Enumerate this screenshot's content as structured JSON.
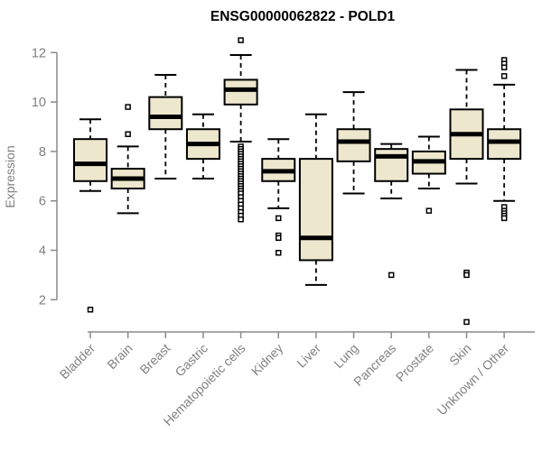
{
  "chart_data": {
    "type": "boxplot",
    "title": "ENSG00000062822 - POLD1",
    "xlabel": "",
    "ylabel": "Expression",
    "yticks": [
      2,
      4,
      6,
      8,
      10,
      12
    ],
    "ylim": [
      1.0,
      12.7
    ],
    "grid": false,
    "legend": "none",
    "categories": [
      "Bladder",
      "Brain",
      "Breast",
      "Gastric",
      "Hematopoietic cells",
      "Kidney",
      "Liver",
      "Lung",
      "Pancreas",
      "Prostate",
      "Skin",
      "Unknown / Other"
    ],
    "series": [
      {
        "name": "Bladder",
        "whisker_low": 6.4,
        "q1": 6.8,
        "median": 7.5,
        "q3": 8.5,
        "whisker_high": 9.3,
        "outliers": [
          1.6
        ]
      },
      {
        "name": "Brain",
        "whisker_low": 5.5,
        "q1": 6.5,
        "median": 6.9,
        "q3": 7.3,
        "whisker_high": 8.2,
        "outliers": [
          9.8,
          8.7
        ]
      },
      {
        "name": "Breast",
        "whisker_low": 6.9,
        "q1": 8.9,
        "median": 9.4,
        "q3": 10.2,
        "whisker_high": 11.1,
        "outliers": []
      },
      {
        "name": "Gastric",
        "whisker_low": 6.9,
        "q1": 7.7,
        "median": 8.3,
        "q3": 8.9,
        "whisker_high": 9.5,
        "outliers": []
      },
      {
        "name": "Hematopoietic cells",
        "whisker_low": 8.4,
        "q1": 9.9,
        "median": 10.5,
        "q3": 10.9,
        "whisker_high": 11.9,
        "outliers": [
          12.5,
          8.2,
          8.1,
          8.0,
          7.9,
          7.8,
          7.7,
          7.6,
          7.5,
          7.4,
          7.3,
          7.2,
          7.1,
          7.0,
          6.9,
          6.8,
          6.7,
          6.6,
          6.5,
          6.4,
          6.3,
          6.15,
          6.0,
          5.85,
          5.7,
          5.55,
          5.4,
          5.25
        ]
      },
      {
        "name": "Kidney",
        "whisker_low": 5.7,
        "q1": 6.8,
        "median": 7.2,
        "q3": 7.7,
        "whisker_high": 8.5,
        "outliers": [
          5.3,
          4.6,
          4.5,
          3.9
        ]
      },
      {
        "name": "Liver",
        "whisker_low": 2.6,
        "q1": 3.6,
        "median": 4.5,
        "q3": 7.7,
        "whisker_high": 9.5,
        "outliers": []
      },
      {
        "name": "Lung",
        "whisker_low": 6.3,
        "q1": 7.6,
        "median": 8.4,
        "q3": 8.9,
        "whisker_high": 10.4,
        "outliers": []
      },
      {
        "name": "Pancreas",
        "whisker_low": 6.1,
        "q1": 6.8,
        "median": 7.8,
        "q3": 8.1,
        "whisker_high": 8.3,
        "outliers": [
          3.0
        ]
      },
      {
        "name": "Prostate",
        "whisker_low": 6.5,
        "q1": 7.1,
        "median": 7.6,
        "q3": 8.0,
        "whisker_high": 8.6,
        "outliers": [
          5.6
        ]
      },
      {
        "name": "Skin",
        "whisker_low": 6.7,
        "q1": 7.7,
        "median": 8.7,
        "q3": 9.7,
        "whisker_high": 11.3,
        "outliers": [
          3.1,
          3.0,
          1.1
        ]
      },
      {
        "name": "Unknown / Other",
        "whisker_low": 6.0,
        "q1": 7.7,
        "median": 8.4,
        "q3": 8.9,
        "whisker_high": 10.7,
        "outliers": [
          11.7,
          11.55,
          11.4,
          11.05,
          5.75,
          5.6,
          5.5,
          5.4,
          5.3
        ]
      }
    ],
    "colors": {
      "box_fill": "#ede7ce",
      "box_line": "#000000",
      "median_line": "#000000",
      "outlier_stroke": "#000000",
      "axis": "#8a8a8a",
      "tick_label": "#808080",
      "title": "#000000",
      "background": "#ffffff"
    }
  }
}
